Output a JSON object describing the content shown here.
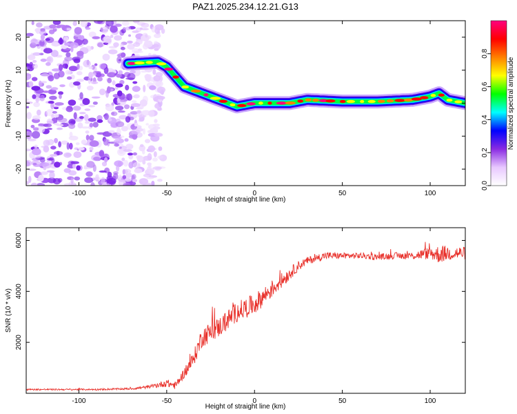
{
  "title": "PAZ1.2025.234.12.21.G13",
  "chart_data": [
    {
      "type": "heatmap",
      "xlabel": "Height of straight line (km)",
      "ylabel": "Frequency (Hz)",
      "xlim": [
        -130,
        120
      ],
      "ylim": [
        -25,
        25
      ],
      "xticks": [
        -100,
        -50,
        0,
        50,
        100
      ],
      "yticks": [
        -20,
        -10,
        0,
        10,
        20
      ],
      "colorbar": {
        "label": "Normalized spectral amplitude",
        "range": [
          0,
          1
        ],
        "ticks": [
          0.0,
          0.2,
          0.4,
          0.6,
          0.8
        ],
        "colors": [
          "#ffffff",
          "#e8c8ff",
          "#8a2be2",
          "#0000ff",
          "#00ffff",
          "#00ff00",
          "#ffff00",
          "#ff8000",
          "#ff0000",
          "#ff007f"
        ]
      },
      "ridge": {
        "x": [
          -72,
          -55,
          -50,
          -45,
          -40,
          -35,
          -25,
          -15,
          -10,
          0,
          10,
          20,
          30,
          50,
          70,
          90,
          100,
          105,
          110,
          120
        ],
        "frequency": [
          12,
          12.5,
          11,
          8,
          5,
          4,
          2,
          0,
          -1,
          0,
          0,
          0,
          1,
          0.5,
          0.5,
          1,
          2,
          3,
          1,
          0
        ]
      },
      "noise_region_x": [
        -130,
        -60
      ]
    },
    {
      "type": "line",
      "xlabel": "Height of straight line (km)",
      "ylabel": "SNR (10 * v/v)",
      "xlim": [
        -130,
        120
      ],
      "ylim": [
        0,
        6500
      ],
      "xticks": [
        -100,
        -50,
        0,
        50,
        100
      ],
      "yticks": [
        2000,
        4000,
        6000
      ],
      "series": [
        {
          "name": "SNR",
          "color": "#e8302a",
          "x": [
            -130,
            -110,
            -90,
            -70,
            -60,
            -50,
            -45,
            -40,
            -35,
            -30,
            -25,
            -20,
            -10,
            0,
            10,
            20,
            25,
            30,
            40,
            50,
            60,
            70,
            80,
            90,
            100,
            105,
            110,
            120
          ],
          "y": [
            150,
            150,
            150,
            180,
            250,
            400,
            300,
            800,
            1300,
            2200,
            2400,
            2600,
            3200,
            3500,
            4100,
            4700,
            5000,
            5200,
            5400,
            5400,
            5400,
            5350,
            5400,
            5400,
            5500,
            5450,
            5500,
            5500
          ],
          "noise_amplitude": [
            30,
            30,
            30,
            40,
            60,
            150,
            150,
            200,
            300,
            400,
            400,
            400,
            400,
            400,
            350,
            250,
            200,
            150,
            150,
            120,
            120,
            120,
            130,
            150,
            250,
            350,
            300,
            250
          ]
        }
      ]
    }
  ]
}
